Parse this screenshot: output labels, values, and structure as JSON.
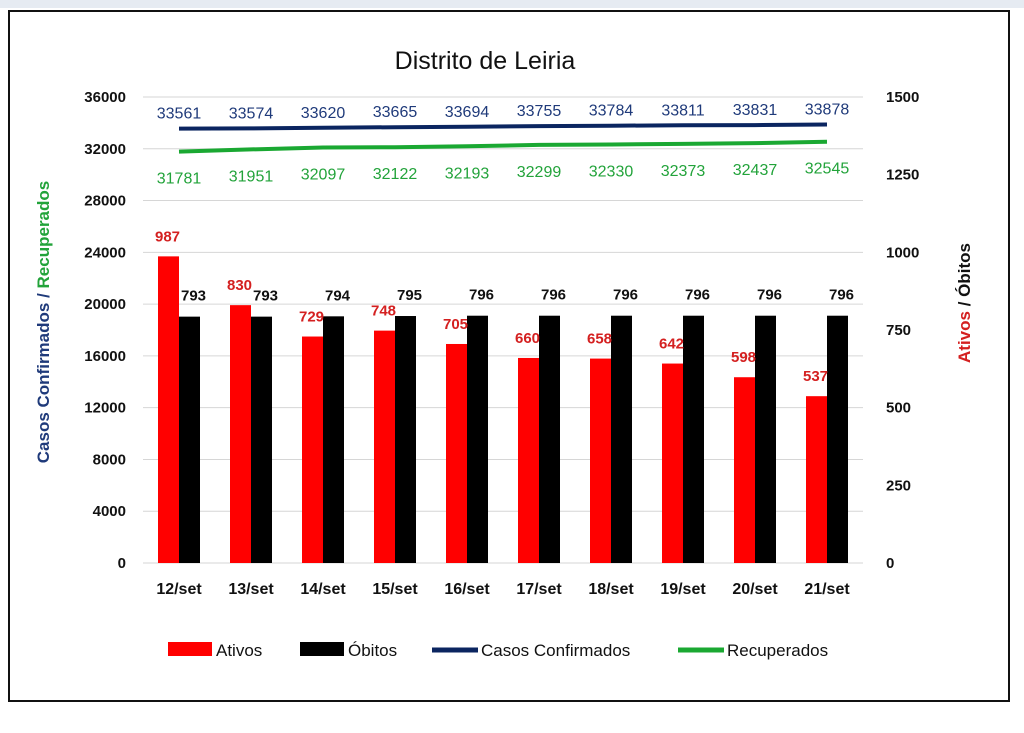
{
  "colors": {
    "ativos": "#ff0000",
    "obitos": "#000000",
    "confirmados": "#0b2560",
    "recuperados": "#1aa832",
    "confirmados_label": "#1f3a7a",
    "recuperados_label": "#22a33a",
    "ativos_label": "#d42020",
    "grid": "#d6d6d6"
  },
  "chart_data": {
    "type": "bar",
    "title": "Distrito de Leiria",
    "categories": [
      "12/set",
      "13/set",
      "14/set",
      "15/set",
      "16/set",
      "17/set",
      "18/set",
      "19/set",
      "20/set",
      "21/set"
    ],
    "left_axis": {
      "label_part1": "Casos Confirmados",
      "label_sep": " / ",
      "label_part2": "Recuperados",
      "ylim": [
        0,
        36000
      ],
      "ticks": [
        0,
        4000,
        8000,
        12000,
        16000,
        20000,
        24000,
        28000,
        32000,
        36000
      ]
    },
    "right_axis": {
      "label_part1": "Ativos",
      "label_sep": " / ",
      "label_part2": "Óbitos",
      "ylim": [
        0,
        1500
      ],
      "ticks": [
        0,
        250,
        500,
        750,
        1000,
        1250,
        1500
      ]
    },
    "grid": true,
    "legend_position": "bottom",
    "series": [
      {
        "name": "Ativos",
        "kind": "bar",
        "axis": "right",
        "color_key": "ativos",
        "values": [
          987,
          830,
          729,
          748,
          705,
          660,
          658,
          642,
          598,
          537
        ]
      },
      {
        "name": "Óbitos",
        "kind": "bar",
        "axis": "right",
        "color_key": "obitos",
        "values": [
          793,
          793,
          794,
          795,
          796,
          796,
          796,
          796,
          796,
          796
        ]
      },
      {
        "name": "Casos Confirmados",
        "kind": "line",
        "axis": "left",
        "color_key": "confirmados",
        "values": [
          33561,
          33574,
          33620,
          33665,
          33694,
          33755,
          33784,
          33811,
          33831,
          33878
        ]
      },
      {
        "name": "Recuperados",
        "kind": "line",
        "axis": "left",
        "color_key": "recuperados",
        "values": [
          31781,
          31951,
          32097,
          32122,
          32193,
          32299,
          32330,
          32373,
          32437,
          32545
        ]
      }
    ]
  }
}
